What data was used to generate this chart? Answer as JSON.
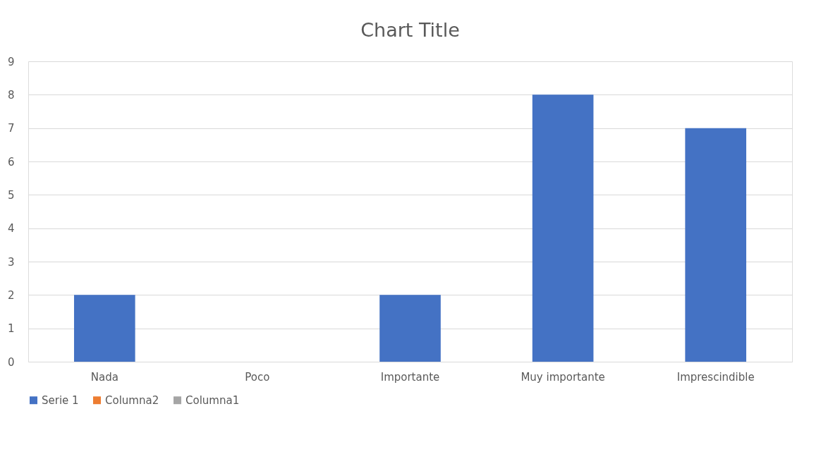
{
  "chart_data": {
    "type": "bar",
    "title": "Chart Title",
    "categories": [
      "Nada",
      "Poco",
      "Importante",
      "Muy importante",
      "Imprescindible"
    ],
    "series": [
      {
        "name": "Serie 1",
        "color": "#4472c4",
        "values": [
          2,
          0,
          2,
          8,
          7
        ]
      },
      {
        "name": "Columna2",
        "color": "#ed7d31",
        "values": [
          null,
          null,
          null,
          null,
          null
        ]
      },
      {
        "name": "Columna1",
        "color": "#a5a5a5",
        "values": [
          null,
          null,
          null,
          null,
          null
        ]
      }
    ],
    "ylim": [
      0,
      9
    ],
    "yticks": [
      0,
      1,
      2,
      3,
      4,
      5,
      6,
      7,
      8,
      9
    ],
    "grid": "y",
    "legend": "bottom"
  }
}
